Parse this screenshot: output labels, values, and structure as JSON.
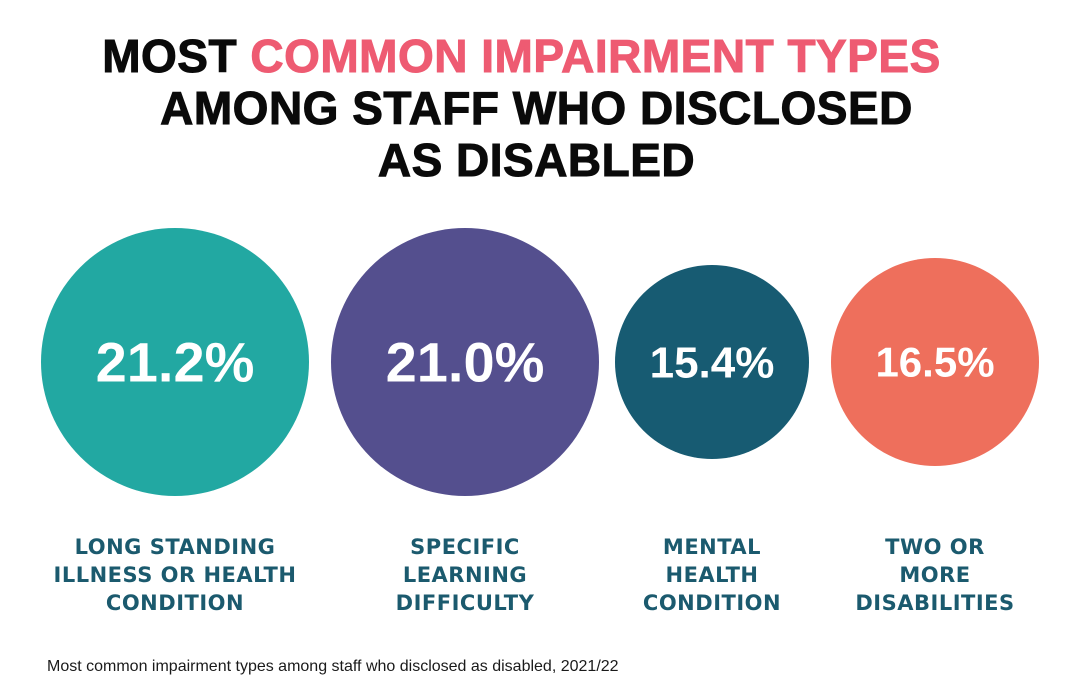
{
  "title": {
    "line1_prefix": "MOST",
    "line1_highlight": "COMMON IMPAIRMENT TYPES",
    "line2": "AMONG STAFF WHO DISCLOSED",
    "line3": "AS DISABLED"
  },
  "caption": "Most common impairment types among staff who disclosed as disabled, 2021/22",
  "chart_data": {
    "type": "bubble",
    "unit": "%",
    "categories": [
      [
        "LONG STANDING",
        "ILLNESS OR HEALTH",
        "CONDITION"
      ],
      [
        "SPECIFIC",
        "LEARNING",
        "DIFFICULTY"
      ],
      [
        "MENTAL",
        "HEALTH",
        "CONDITION"
      ],
      [
        "TWO OR",
        "MORE",
        "DISABILITIES"
      ]
    ],
    "values": [
      21.2,
      21.0,
      15.4,
      16.5
    ],
    "value_labels": [
      "21.2%",
      "21.0%",
      "15.4%",
      "16.5%"
    ],
    "colors": [
      "#22a8a2",
      "#544f8e",
      "#175b72",
      "#ee6f5c"
    ],
    "label_color": "#1b5a6e",
    "title_highlight_color": "#ee5b72"
  }
}
